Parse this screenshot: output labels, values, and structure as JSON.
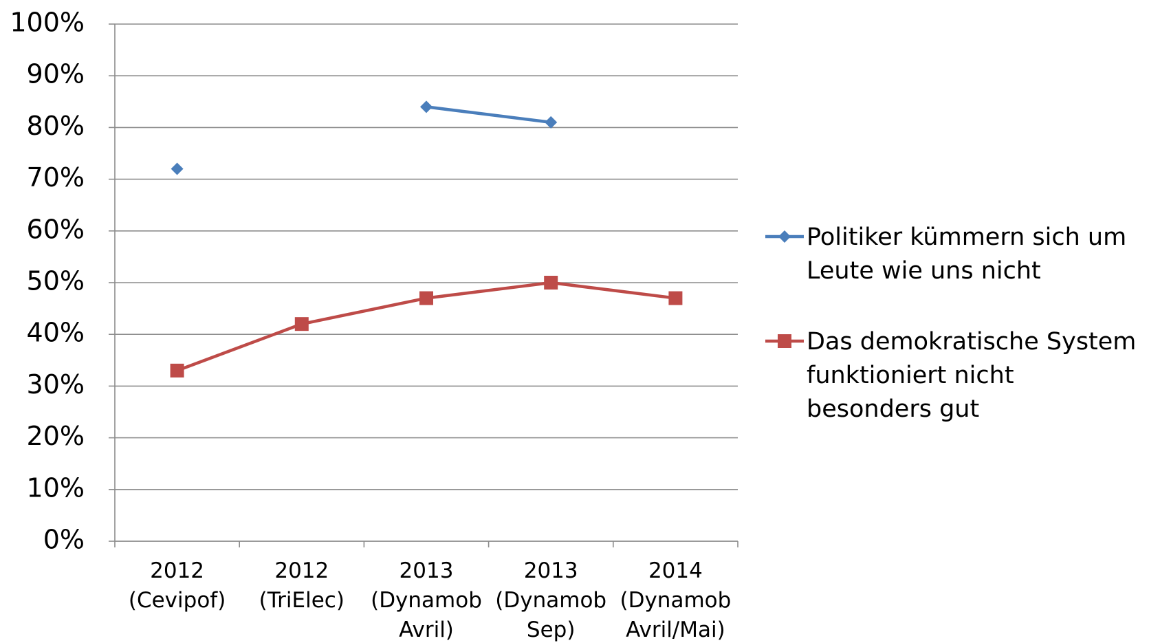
{
  "chart_data": {
    "type": "line",
    "categories": [
      "2012 (Cevipof)",
      "2012 (TriElec)",
      "2013 (Dynamob Avril)",
      "2013 (Dynamob Sep)",
      "2014 (Dynamob Avril/Mai)"
    ],
    "series": [
      {
        "name": "Politiker kümmern sich um Leute wie uns nicht",
        "color": "#4a7ebb",
        "marker": "diamond",
        "values": [
          72,
          null,
          84,
          81,
          null
        ]
      },
      {
        "name": "Das demokratische System funktioniert nicht besonders gut",
        "color": "#be4b48",
        "marker": "square",
        "values": [
          33,
          42,
          47,
          50,
          47
        ]
      }
    ],
    "ylim": [
      0,
      100
    ],
    "yticks": [
      {
        "value": 0,
        "label": "0%"
      },
      {
        "value": 10,
        "label": "10%"
      },
      {
        "value": 20,
        "label": "20%"
      },
      {
        "value": 30,
        "label": "30%"
      },
      {
        "value": 40,
        "label": "40%"
      },
      {
        "value": 50,
        "label": "50%"
      },
      {
        "value": 60,
        "label": "60%"
      },
      {
        "value": 70,
        "label": "70%"
      },
      {
        "value": 80,
        "label": "80%"
      },
      {
        "value": 90,
        "label": "90%"
      },
      {
        "value": 100,
        "label": "100%"
      }
    ],
    "grid": true,
    "legend": "right"
  }
}
